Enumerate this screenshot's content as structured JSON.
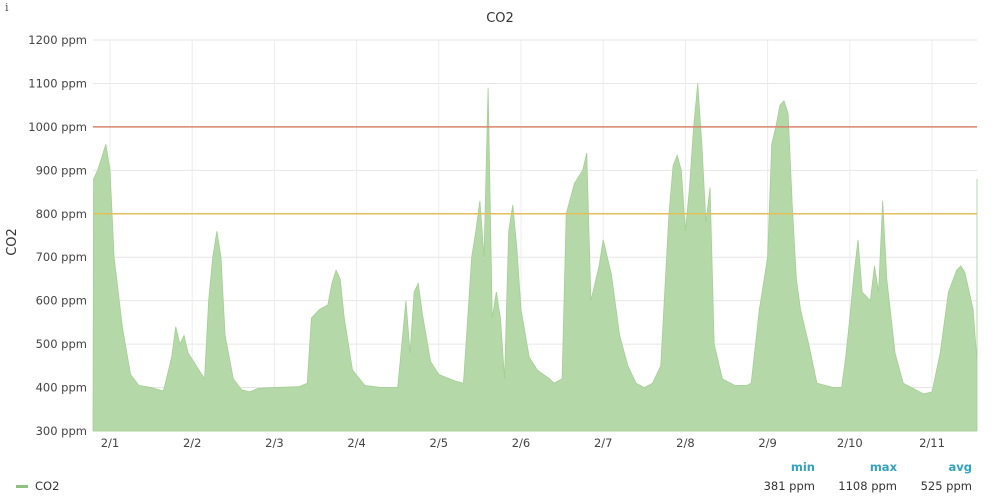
{
  "info_icon": "i",
  "chart_data": {
    "type": "area",
    "title": "CO2",
    "ylabel": "CO2",
    "ylim": [
      300,
      1200
    ],
    "y_ticks": [
      300,
      400,
      500,
      600,
      700,
      800,
      900,
      1000,
      1100,
      1200
    ],
    "y_unit": "ppm",
    "x_ticks": [
      "2/1",
      "2/2",
      "2/3",
      "2/4",
      "2/5",
      "2/6",
      "2/7",
      "2/8",
      "2/9",
      "2/10",
      "2/11"
    ],
    "grid": true,
    "thresholds": [
      {
        "value": 1000,
        "color": "#d9836a"
      },
      {
        "value": 800,
        "color": "#e3bf5a"
      }
    ],
    "series": [
      {
        "name": "CO2",
        "color": "#b5d8a8",
        "points": [
          [
            0.0,
            880
          ],
          [
            0.05,
            900
          ],
          [
            0.1,
            930
          ],
          [
            0.15,
            960
          ],
          [
            0.2,
            900
          ],
          [
            0.25,
            700
          ],
          [
            0.35,
            540
          ],
          [
            0.45,
            430
          ],
          [
            0.55,
            405
          ],
          [
            0.7,
            400
          ],
          [
            0.85,
            392
          ],
          [
            0.95,
            470
          ],
          [
            1.0,
            540
          ],
          [
            1.05,
            500
          ],
          [
            1.1,
            520
          ],
          [
            1.15,
            480
          ],
          [
            1.25,
            450
          ],
          [
            1.35,
            420
          ],
          [
            1.4,
            600
          ],
          [
            1.45,
            700
          ],
          [
            1.5,
            760
          ],
          [
            1.55,
            700
          ],
          [
            1.6,
            520
          ],
          [
            1.7,
            420
          ],
          [
            1.8,
            395
          ],
          [
            1.9,
            390
          ],
          [
            2.0,
            398
          ],
          [
            2.2,
            400
          ],
          [
            2.5,
            402
          ],
          [
            2.6,
            410
          ],
          [
            2.65,
            560
          ],
          [
            2.75,
            580
          ],
          [
            2.85,
            590
          ],
          [
            2.9,
            640
          ],
          [
            2.95,
            670
          ],
          [
            3.0,
            650
          ],
          [
            3.05,
            560
          ],
          [
            3.15,
            440
          ],
          [
            3.3,
            405
          ],
          [
            3.5,
            400
          ],
          [
            3.7,
            400
          ],
          [
            3.8,
            600
          ],
          [
            3.85,
            480
          ],
          [
            3.9,
            620
          ],
          [
            3.95,
            640
          ],
          [
            4.0,
            570
          ],
          [
            4.1,
            460
          ],
          [
            4.2,
            430
          ],
          [
            4.4,
            415
          ],
          [
            4.5,
            410
          ],
          [
            4.6,
            700
          ],
          [
            4.65,
            760
          ],
          [
            4.7,
            830
          ],
          [
            4.75,
            700
          ],
          [
            4.8,
            1090
          ],
          [
            4.85,
            560
          ],
          [
            4.9,
            620
          ],
          [
            4.95,
            560
          ],
          [
            5.0,
            420
          ],
          [
            5.05,
            760
          ],
          [
            5.1,
            820
          ],
          [
            5.15,
            720
          ],
          [
            5.2,
            580
          ],
          [
            5.3,
            470
          ],
          [
            5.4,
            440
          ],
          [
            5.55,
            420
          ],
          [
            5.6,
            410
          ],
          [
            5.7,
            420
          ],
          [
            5.75,
            800
          ],
          [
            5.85,
            870
          ],
          [
            5.95,
            900
          ],
          [
            6.0,
            940
          ],
          [
            6.05,
            600
          ],
          [
            6.1,
            640
          ],
          [
            6.15,
            680
          ],
          [
            6.2,
            740
          ],
          [
            6.25,
            700
          ],
          [
            6.3,
            660
          ],
          [
            6.4,
            520
          ],
          [
            6.5,
            450
          ],
          [
            6.6,
            410
          ],
          [
            6.7,
            400
          ],
          [
            6.8,
            410
          ],
          [
            6.9,
            450
          ],
          [
            7.0,
            800
          ],
          [
            7.05,
            910
          ],
          [
            7.1,
            935
          ],
          [
            7.15,
            900
          ],
          [
            7.2,
            760
          ],
          [
            7.25,
            860
          ],
          [
            7.3,
            1000
          ],
          [
            7.35,
            1100
          ],
          [
            7.4,
            960
          ],
          [
            7.45,
            780
          ],
          [
            7.5,
            860
          ],
          [
            7.55,
            500
          ],
          [
            7.65,
            420
          ],
          [
            7.8,
            405
          ],
          [
            7.95,
            405
          ],
          [
            8.0,
            410
          ],
          [
            8.1,
            580
          ],
          [
            8.2,
            700
          ],
          [
            8.25,
            960
          ],
          [
            8.3,
            1000
          ],
          [
            8.35,
            1050
          ],
          [
            8.4,
            1060
          ],
          [
            8.45,
            1030
          ],
          [
            8.5,
            820
          ],
          [
            8.55,
            650
          ],
          [
            8.6,
            580
          ],
          [
            8.7,
            500
          ],
          [
            8.8,
            410
          ],
          [
            8.9,
            405
          ],
          [
            9.0,
            400
          ],
          [
            9.1,
            400
          ],
          [
            9.15,
            470
          ],
          [
            9.2,
            560
          ],
          [
            9.25,
            660
          ],
          [
            9.3,
            740
          ],
          [
            9.35,
            620
          ],
          [
            9.45,
            600
          ],
          [
            9.5,
            680
          ],
          [
            9.55,
            620
          ],
          [
            9.6,
            830
          ],
          [
            9.65,
            650
          ],
          [
            9.75,
            480
          ],
          [
            9.85,
            410
          ],
          [
            10.0,
            395
          ],
          [
            10.1,
            385
          ],
          [
            10.2,
            390
          ],
          [
            10.3,
            480
          ],
          [
            10.4,
            620
          ],
          [
            10.5,
            670
          ],
          [
            10.55,
            680
          ],
          [
            10.6,
            665
          ],
          [
            10.7,
            580
          ],
          [
            10.8,
            460
          ],
          [
            10.9,
            420
          ],
          [
            11.1,
            400
          ],
          [
            11.4,
            392
          ],
          [
            11.5,
            395
          ],
          [
            11.55,
            450
          ],
          [
            11.6,
            430
          ],
          [
            11.65,
            440
          ],
          [
            11.7,
            450
          ],
          [
            11.75,
            420
          ],
          [
            11.8,
            390
          ],
          [
            12.0,
            395
          ],
          [
            12.3,
            395
          ],
          [
            12.5,
            400
          ],
          [
            12.6,
            385
          ],
          [
            12.7,
            390
          ],
          [
            12.75,
            480
          ],
          [
            12.8,
            620
          ],
          [
            12.85,
            760
          ],
          [
            12.9,
            830
          ],
          [
            12.92,
            880
          ]
        ]
      }
    ],
    "legend": {
      "placement": "bottom",
      "stats_headers": [
        "min",
        "max",
        "avg"
      ],
      "stats_values": [
        "381 ppm",
        "1108 ppm",
        "525 ppm"
      ]
    }
  }
}
